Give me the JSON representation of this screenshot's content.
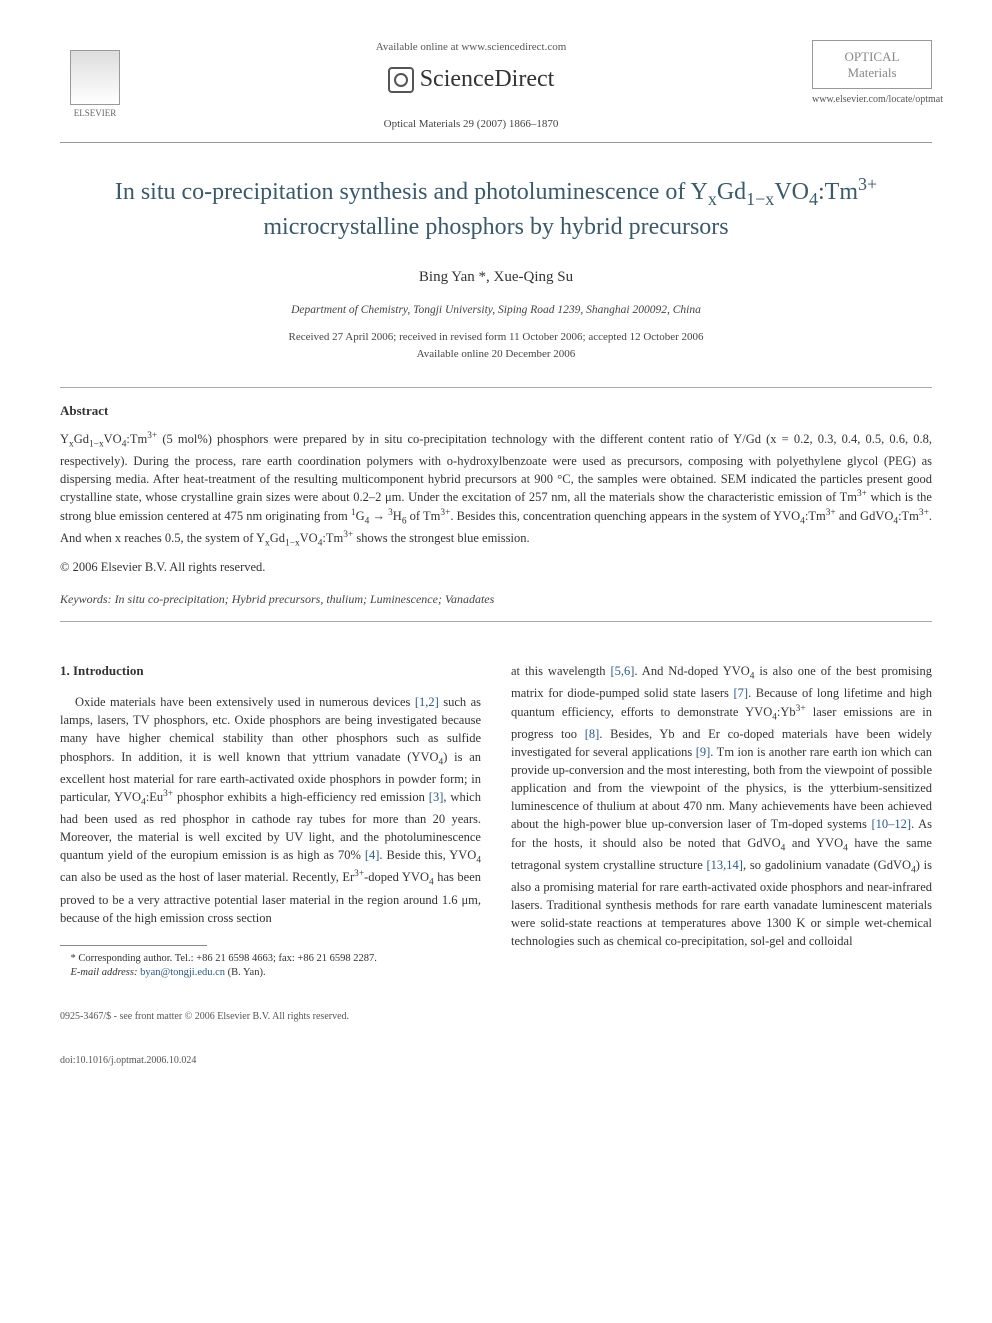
{
  "header": {
    "publisher": "ELSEVIER",
    "available_online": "Available online at www.sciencedirect.com",
    "sciencedirect": "ScienceDirect",
    "journal_ref": "Optical Materials 29 (2007) 1866–1870",
    "journal_logo_line1": "OPTICAL",
    "journal_logo_line2": "Materials",
    "journal_url": "www.elsevier.com/locate/optmat"
  },
  "article": {
    "title_html": "In situ co-precipitation synthesis and photoluminescence of Y<sub>x</sub>Gd<sub>1−x</sub>VO<sub>4</sub>:Tm<sup>3+</sup> microcrystalline phosphors by hybrid precursors",
    "authors_html": "Bing Yan *, Xue-Qing Su",
    "affiliation": "Department of Chemistry, Tongji University, Siping Road 1239, Shanghai 200092, China",
    "received": "Received 27 April 2006; received in revised form 11 October 2006; accepted 12 October 2006",
    "available": "Available online 20 December 2006"
  },
  "abstract": {
    "heading": "Abstract",
    "body_html": "Y<sub>x</sub>Gd<sub>1−x</sub>VO<sub>4</sub>:Tm<sup>3+</sup> (5 mol%) phosphors were prepared by in situ co-precipitation technology with the different content ratio of Y/Gd (x = 0.2, 0.3, 0.4, 0.5, 0.6, 0.8, respectively). During the process, rare earth coordination polymers with o-hydroxylbenzoate were used as precursors, composing with polyethylene glycol (PEG) as dispersing media. After heat-treatment of the resulting multicomponent hybrid precursors at 900 °C, the samples were obtained. SEM indicated the particles present good crystalline state, whose crystalline grain sizes were about 0.2–2 μm. Under the excitation of 257 nm, all the materials show the characteristic emission of Tm<sup>3+</sup> which is the strong blue emission centered at 475 nm originating from <sup>1</sup>G<sub>4</sub> → <sup>3</sup>H<sub>6</sub> of Tm<sup>3+</sup>. Besides this, concentration quenching appears in the system of YVO<sub>4</sub>:Tm<sup>3+</sup> and GdVO<sub>4</sub>:Tm<sup>3+</sup>. And when x reaches 0.5, the system of Y<sub>x</sub>Gd<sub>1−x</sub>VO<sub>4</sub>:Tm<sup>3+</sup> shows the strongest blue emission.",
    "copyright": "© 2006 Elsevier B.V. All rights reserved.",
    "keywords_label": "Keywords:",
    "keywords_text": "In situ co-precipitation; Hybrid precursors, thulium; Luminescence; Vanadates"
  },
  "body": {
    "section1_heading": "1. Introduction",
    "col1_html": "Oxide materials have been extensively used in numerous devices <span class='ref-link'>[1,2]</span> such as lamps, lasers, TV phosphors, etc. Oxide phosphors are being investigated because many have higher chemical stability than other phosphors such as sulfide phosphors. In addition, it is well known that yttrium vanadate (YVO<sub>4</sub>) is an excellent host material for rare earth-activated oxide phosphors in powder form; in particular, YVO<sub>4</sub>:Eu<sup>3+</sup> phosphor exhibits a high-efficiency red emission <span class='ref-link'>[3]</span>, which had been used as red phosphor in cathode ray tubes for more than 20 years. Moreover, the material is well excited by UV light, and the photoluminescence quantum yield of the europium emission is as high as 70% <span class='ref-link'>[4]</span>. Beside this, YVO<sub>4</sub> can also be used as the host of laser material. Recently, Er<sup>3+</sup>-doped YVO<sub>4</sub> has been proved to be a very attractive potential laser material in the region around 1.6 μm, because of the high emission cross section",
    "col2_html": "at this wavelength <span class='ref-link'>[5,6]</span>. And Nd-doped YVO<sub>4</sub> is also one of the best promising matrix for diode-pumped solid state lasers <span class='ref-link'>[7]</span>. Because of long lifetime and high quantum efficiency, efforts to demonstrate YVO<sub>4</sub>:Yb<sup>3+</sup> laser emissions are in progress too <span class='ref-link'>[8]</span>. Besides, Yb and Er co-doped materials have been widely investigated for several applications <span class='ref-link'>[9]</span>. Tm ion is another rare earth ion which can provide up-conversion and the most interesting, both from the viewpoint of possible application and from the viewpoint of the physics, is the ytterbium-sensitized luminescence of thulium at about 470 nm. Many achievements have been achieved about the high-power blue up-conversion laser of Tm-doped systems <span class='ref-link'>[10–12]</span>. As for the hosts, it should also be noted that GdVO<sub>4</sub> and YVO<sub>4</sub> have the same tetragonal system crystalline structure <span class='ref-link'>[13,14]</span>, so gadolinium vanadate (GdVO<sub>4</sub>) is also a promising material for rare earth-activated oxide phosphors and near-infrared lasers. Traditional synthesis methods for rare earth vanadate luminescent materials were solid-state reactions at temperatures above 1300 K or simple wet-chemical technologies such as chemical co-precipitation, sol-gel and colloidal"
  },
  "footnote": {
    "corr": "* Corresponding author. Tel.: +86 21 6598 4663; fax: +86 21 6598 2287.",
    "email_label": "E-mail address:",
    "email": "byan@tongji.edu.cn",
    "email_name": "(B. Yan)."
  },
  "footer": {
    "issn": "0925-3467/$ - see front matter © 2006 Elsevier B.V. All rights reserved.",
    "doi": "doi:10.1016/j.optmat.2006.10.024"
  },
  "colors": {
    "title": "#3a5a6a",
    "link": "#2a5a8a",
    "text": "#333333",
    "rule": "#999999"
  }
}
